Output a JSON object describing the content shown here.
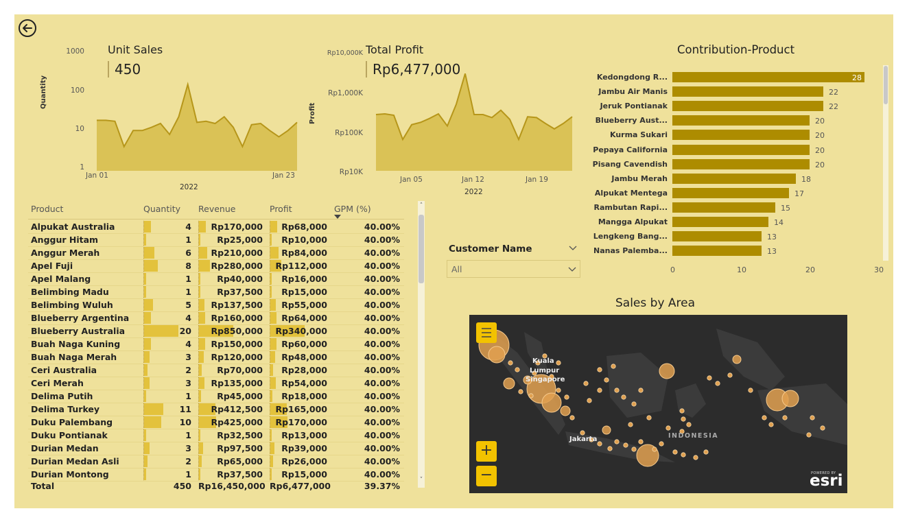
{
  "unit_sales": {
    "title": "Unit Sales",
    "kpi": "450",
    "y_axis_label": "Quantity",
    "y_ticks": [
      "1000",
      "100",
      "10",
      "1"
    ],
    "x_ticks": [
      "Jan 01",
      "Jan 23"
    ],
    "x_year": "2022"
  },
  "total_profit": {
    "title": "Total Profit",
    "kpi": "Rp6,477,000",
    "y_axis_label": "Profit",
    "y_ticks": [
      "Rp10,000K",
      "Rp1,000K",
      "Rp100K",
      "Rp10K"
    ],
    "x_ticks": [
      "Jan 05",
      "Jan 12",
      "Jan 19"
    ],
    "x_year": "2022"
  },
  "chart_data": [
    {
      "type": "area",
      "title": "Unit Sales",
      "xlabel": "2022",
      "ylabel": "Quantity",
      "yscale": "log",
      "ylim": [
        1,
        1000
      ],
      "x": [
        "Jan 01",
        "Jan 02",
        "Jan 03",
        "Jan 04",
        "Jan 05",
        "Jan 06",
        "Jan 07",
        "Jan 08",
        "Jan 09",
        "Jan 10",
        "Jan 11",
        "Jan 12",
        "Jan 13",
        "Jan 14",
        "Jan 15",
        "Jan 16",
        "Jan 17",
        "Jan 18",
        "Jan 19",
        "Jan 20",
        "Jan 21",
        "Jan 22",
        "Jan 23"
      ],
      "values": [
        18,
        18,
        17,
        4,
        10,
        10,
        12,
        15,
        8,
        22,
        140,
        16,
        17,
        15,
        22,
        12,
        4,
        14,
        15,
        10,
        7,
        10,
        16
      ]
    },
    {
      "type": "area",
      "title": "Total Profit",
      "xlabel": "2022",
      "ylabel": "Profit",
      "yscale": "log",
      "ylim": [
        10000,
        10000000
      ],
      "x": [
        "Jan 01",
        "Jan 02",
        "Jan 03",
        "Jan 04",
        "Jan 05",
        "Jan 06",
        "Jan 07",
        "Jan 08",
        "Jan 09",
        "Jan 10",
        "Jan 11",
        "Jan 12",
        "Jan 13",
        "Jan 14",
        "Jan 15",
        "Jan 16",
        "Jan 17",
        "Jan 18",
        "Jan 19",
        "Jan 20",
        "Jan 21",
        "Jan 22",
        "Jan 23"
      ],
      "values": [
        250000,
        260000,
        240000,
        60000,
        140000,
        160000,
        200000,
        260000,
        130000,
        450000,
        2600000,
        250000,
        250000,
        210000,
        320000,
        190000,
        60000,
        220000,
        210000,
        150000,
        110000,
        150000,
        220000
      ]
    },
    {
      "type": "bar",
      "title": "Contribution-Product",
      "orientation": "horizontal",
      "categories": [
        "Kedongdong R...",
        "Jambu Air Manis",
        "Jeruk Pontianak",
        "Blueberry Aust...",
        "Kurma Sukari",
        "Pepaya California",
        "Pisang Cavendish",
        "Jambu Merah",
        "Alpukat Mentega",
        "Rambutan Rapi...",
        "Mangga Alpukat",
        "Lengkeng Bang...",
        "Nanas Palemba..."
      ],
      "values": [
        28,
        22,
        22,
        20,
        20,
        20,
        20,
        18,
        17,
        15,
        14,
        13,
        13
      ],
      "xlim": [
        0,
        30
      ],
      "x_ticks": [
        "0",
        "10",
        "20",
        "30"
      ]
    }
  ],
  "table": {
    "headers": [
      "Product",
      "Quantity",
      "Revenue",
      "Profit",
      "GPM (%)"
    ],
    "sort_icon": "sort-descending-icon",
    "rows": [
      {
        "product": "Alpukat Australia",
        "qty": "4",
        "revenue": "Rp170,000",
        "profit": "Rp68,000",
        "gpm": "40.00%",
        "q": 4,
        "r": 170000,
        "p": 68000
      },
      {
        "product": "Anggur Hitam",
        "qty": "1",
        "revenue": "Rp25,000",
        "profit": "Rp10,000",
        "gpm": "40.00%",
        "q": 1,
        "r": 25000,
        "p": 10000
      },
      {
        "product": "Anggur Merah",
        "qty": "6",
        "revenue": "Rp210,000",
        "profit": "Rp84,000",
        "gpm": "40.00%",
        "q": 6,
        "r": 210000,
        "p": 84000
      },
      {
        "product": "Apel Fuji",
        "qty": "8",
        "revenue": "Rp280,000",
        "profit": "Rp112,000",
        "gpm": "40.00%",
        "q": 8,
        "r": 280000,
        "p": 112000
      },
      {
        "product": "Apel Malang",
        "qty": "1",
        "revenue": "Rp40,000",
        "profit": "Rp16,000",
        "gpm": "40.00%",
        "q": 1,
        "r": 40000,
        "p": 16000
      },
      {
        "product": "Belimbing Madu",
        "qty": "1",
        "revenue": "Rp37,500",
        "profit": "Rp15,000",
        "gpm": "40.00%",
        "q": 1,
        "r": 37500,
        "p": 15000
      },
      {
        "product": "Belimbing Wuluh",
        "qty": "5",
        "revenue": "Rp137,500",
        "profit": "Rp55,000",
        "gpm": "40.00%",
        "q": 5,
        "r": 137500,
        "p": 55000
      },
      {
        "product": "Blueberry Argentina",
        "qty": "4",
        "revenue": "Rp160,000",
        "profit": "Rp64,000",
        "gpm": "40.00%",
        "q": 4,
        "r": 160000,
        "p": 64000
      },
      {
        "product": "Blueberry Australia",
        "qty": "20",
        "revenue": "Rp850,000",
        "profit": "Rp340,000",
        "gpm": "40.00%",
        "q": 20,
        "r": 850000,
        "p": 340000
      },
      {
        "product": "Buah Naga Kuning",
        "qty": "4",
        "revenue": "Rp150,000",
        "profit": "Rp60,000",
        "gpm": "40.00%",
        "q": 4,
        "r": 150000,
        "p": 60000
      },
      {
        "product": "Buah Naga Merah",
        "qty": "3",
        "revenue": "Rp120,000",
        "profit": "Rp48,000",
        "gpm": "40.00%",
        "q": 3,
        "r": 120000,
        "p": 48000
      },
      {
        "product": "Ceri Australia",
        "qty": "2",
        "revenue": "Rp70,000",
        "profit": "Rp28,000",
        "gpm": "40.00%",
        "q": 2,
        "r": 70000,
        "p": 28000
      },
      {
        "product": "Ceri Merah",
        "qty": "3",
        "revenue": "Rp135,000",
        "profit": "Rp54,000",
        "gpm": "40.00%",
        "q": 3,
        "r": 135000,
        "p": 54000
      },
      {
        "product": "Delima Putih",
        "qty": "1",
        "revenue": "Rp45,000",
        "profit": "Rp18,000",
        "gpm": "40.00%",
        "q": 1,
        "r": 45000,
        "p": 18000
      },
      {
        "product": "Delima Turkey",
        "qty": "11",
        "revenue": "Rp412,500",
        "profit": "Rp165,000",
        "gpm": "40.00%",
        "q": 11,
        "r": 412500,
        "p": 165000
      },
      {
        "product": "Duku Palembang",
        "qty": "10",
        "revenue": "Rp425,000",
        "profit": "Rp170,000",
        "gpm": "40.00%",
        "q": 10,
        "r": 425000,
        "p": 170000
      },
      {
        "product": "Duku Pontianak",
        "qty": "1",
        "revenue": "Rp32,500",
        "profit": "Rp13,000",
        "gpm": "40.00%",
        "q": 1,
        "r": 32500,
        "p": 13000
      },
      {
        "product": "Durian Medan",
        "qty": "3",
        "revenue": "Rp97,500",
        "profit": "Rp39,000",
        "gpm": "40.00%",
        "q": 3,
        "r": 97500,
        "p": 39000
      },
      {
        "product": "Durian Medan Asli",
        "qty": "2",
        "revenue": "Rp65,000",
        "profit": "Rp26,000",
        "gpm": "40.00%",
        "q": 2,
        "r": 65000,
        "p": 26000
      },
      {
        "product": "Durian Montong",
        "qty": "1",
        "revenue": "Rp37,500",
        "profit": "Rp15,000",
        "gpm": "40.00%",
        "q": 1,
        "r": 37500,
        "p": 15000
      }
    ],
    "total": {
      "label": "Total",
      "qty": "450",
      "revenue": "Rp16,450,000",
      "profit": "Rp6,477,000",
      "gpm": "39.37%"
    }
  },
  "slicer": {
    "title": "Customer Name",
    "value": "All"
  },
  "contribution": {
    "title": "Contribution-Product"
  },
  "map": {
    "title": "Sales by Area",
    "labels": [
      "Kuala",
      "Lumpur",
      "Singapore",
      "Jakarta",
      "INDONESIA"
    ],
    "branding_small": "POWERED BY",
    "branding": "esri",
    "menu_icon": "hamburger-icon",
    "zoom_in": "+",
    "zoom_out": "−"
  },
  "nav": {
    "back_icon": "back-arrow-icon"
  },
  "colors": {
    "background": "#efe19b",
    "area_fill": "#d6bc4a",
    "bar": "#ad8c00",
    "table_bar": "#e3c23c",
    "map_bg": "#2c2c2c",
    "bubble": "#e0a050"
  }
}
